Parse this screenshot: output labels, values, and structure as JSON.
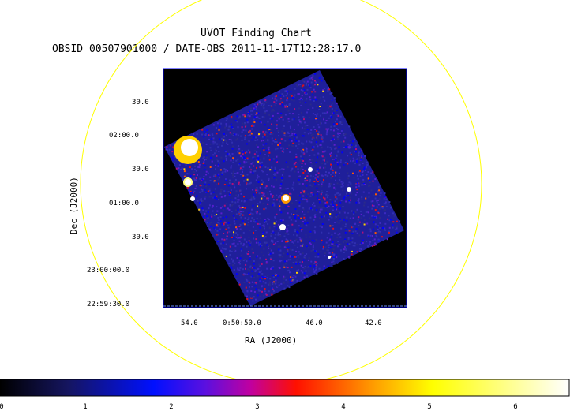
{
  "title": "UVOT Finding Chart",
  "subtitle": "OBSID 00507901000 / DATE-OBS 2011-11-17T12:28:17.0",
  "axes": {
    "x_label": "RA (J2000)",
    "y_label": "Dec (J2000)",
    "x_ticks": [
      "54.0",
      "0:50:50.0",
      "46.0",
      "42.0"
    ],
    "y_ticks": [
      "30.0",
      "02:00.0",
      "30.0",
      "01:00.0",
      "30.0",
      "23:00:00.0",
      "22:59:30.0"
    ]
  },
  "colorbar": {
    "ticks": [
      "0",
      "1",
      "2",
      "3",
      "4",
      "5",
      "6"
    ],
    "colors": [
      "#000000",
      "#1a1a6e",
      "#0000ff",
      "#7a00d0",
      "#ff0000",
      "#ff9a00",
      "#ffff00",
      "#ffffff"
    ]
  },
  "colors": {
    "circle": "#ffff00",
    "frame": "#0000ff",
    "background_field": "#000000",
    "field": "#1f1f9a"
  }
}
